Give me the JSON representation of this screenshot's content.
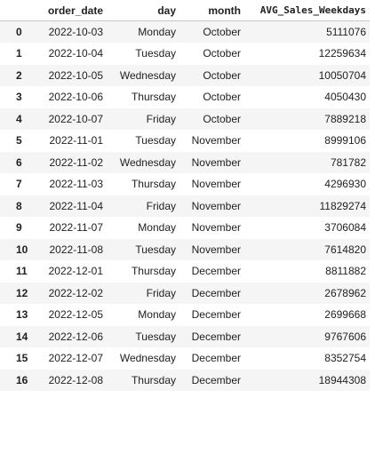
{
  "table": {
    "columns": [
      "",
      "order_date",
      "day",
      "month",
      "AVG_Sales_Weekdays"
    ],
    "rows": [
      {
        "index": "0",
        "order_date": "2022-10-03",
        "day": "Monday",
        "month": "October",
        "avg": "5111076"
      },
      {
        "index": "1",
        "order_date": "2022-10-04",
        "day": "Tuesday",
        "month": "October",
        "avg": "12259634"
      },
      {
        "index": "2",
        "order_date": "2022-10-05",
        "day": "Wednesday",
        "month": "October",
        "avg": "10050704"
      },
      {
        "index": "3",
        "order_date": "2022-10-06",
        "day": "Thursday",
        "month": "October",
        "avg": "4050430"
      },
      {
        "index": "4",
        "order_date": "2022-10-07",
        "day": "Friday",
        "month": "October",
        "avg": "7889218"
      },
      {
        "index": "5",
        "order_date": "2022-11-01",
        "day": "Tuesday",
        "month": "November",
        "avg": "8999106"
      },
      {
        "index": "6",
        "order_date": "2022-11-02",
        "day": "Wednesday",
        "month": "November",
        "avg": "781782"
      },
      {
        "index": "7",
        "order_date": "2022-11-03",
        "day": "Thursday",
        "month": "November",
        "avg": "4296930"
      },
      {
        "index": "8",
        "order_date": "2022-11-04",
        "day": "Friday",
        "month": "November",
        "avg": "11829274"
      },
      {
        "index": "9",
        "order_date": "2022-11-07",
        "day": "Monday",
        "month": "November",
        "avg": "3706084"
      },
      {
        "index": "10",
        "order_date": "2022-11-08",
        "day": "Tuesday",
        "month": "November",
        "avg": "7614820"
      },
      {
        "index": "11",
        "order_date": "2022-12-01",
        "day": "Thursday",
        "month": "December",
        "avg": "8811882"
      },
      {
        "index": "12",
        "order_date": "2022-12-02",
        "day": "Friday",
        "month": "December",
        "avg": "2678962"
      },
      {
        "index": "13",
        "order_date": "2022-12-05",
        "day": "Monday",
        "month": "December",
        "avg": "2699668"
      },
      {
        "index": "14",
        "order_date": "2022-12-06",
        "day": "Tuesday",
        "month": "December",
        "avg": "9767606"
      },
      {
        "index": "15",
        "order_date": "2022-12-07",
        "day": "Wednesday",
        "month": "December",
        "avg": "8352754"
      },
      {
        "index": "16",
        "order_date": "2022-12-08",
        "day": "Thursday",
        "month": "December",
        "avg": "18944308"
      }
    ]
  },
  "colors": {
    "stripe": "#f5f5f5",
    "header_border": "#c9c9c9",
    "text": "#212121"
  }
}
